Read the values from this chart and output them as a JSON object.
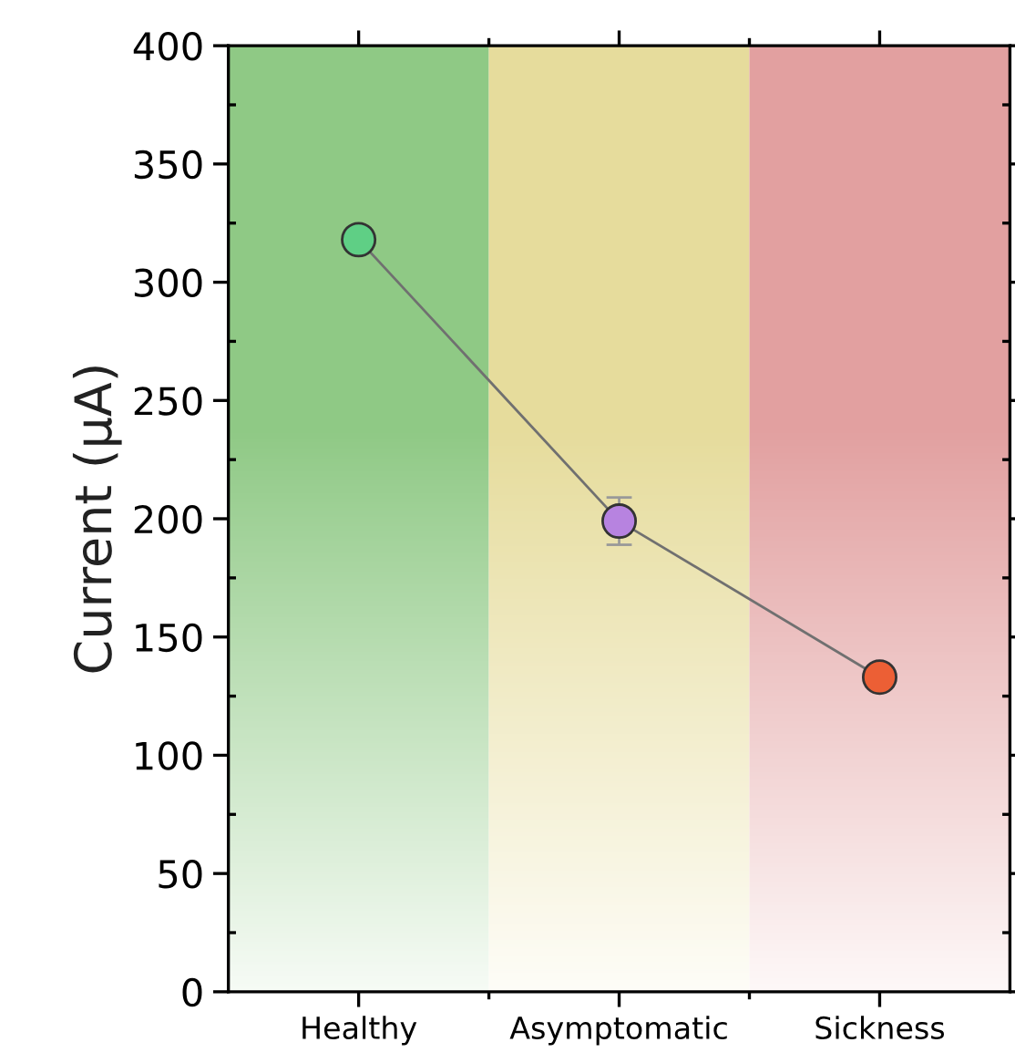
{
  "chart_data": {
    "type": "line",
    "ylabel": "Current (μA)",
    "categories": [
      "Healthy",
      "Asymptomatic",
      "Sickness"
    ],
    "series": [
      {
        "color": "#707070",
        "colors": [
          "#5fcf85",
          "#b783e0",
          "#ec5f35"
        ],
        "values": [
          318,
          199,
          133
        ],
        "errors": [
          null,
          10,
          null
        ]
      }
    ],
    "ylim": [
      0,
      400
    ],
    "yticks": [
      0,
      50,
      100,
      150,
      200,
      250,
      300,
      350,
      400
    ],
    "grid": false,
    "legend": false,
    "marker": "circle",
    "line_style": "solid",
    "bands": [
      {
        "axis": "x",
        "from": "Healthy",
        "to": "Healthy",
        "color": "#8fc985"
      },
      {
        "axis": "x",
        "from": "Asymptomatic",
        "to": "Asymptomatic",
        "color": "#e6dc9c"
      },
      {
        "axis": "x",
        "from": "Sickness",
        "to": "Sickness",
        "color": "#e2a0a0"
      }
    ]
  }
}
